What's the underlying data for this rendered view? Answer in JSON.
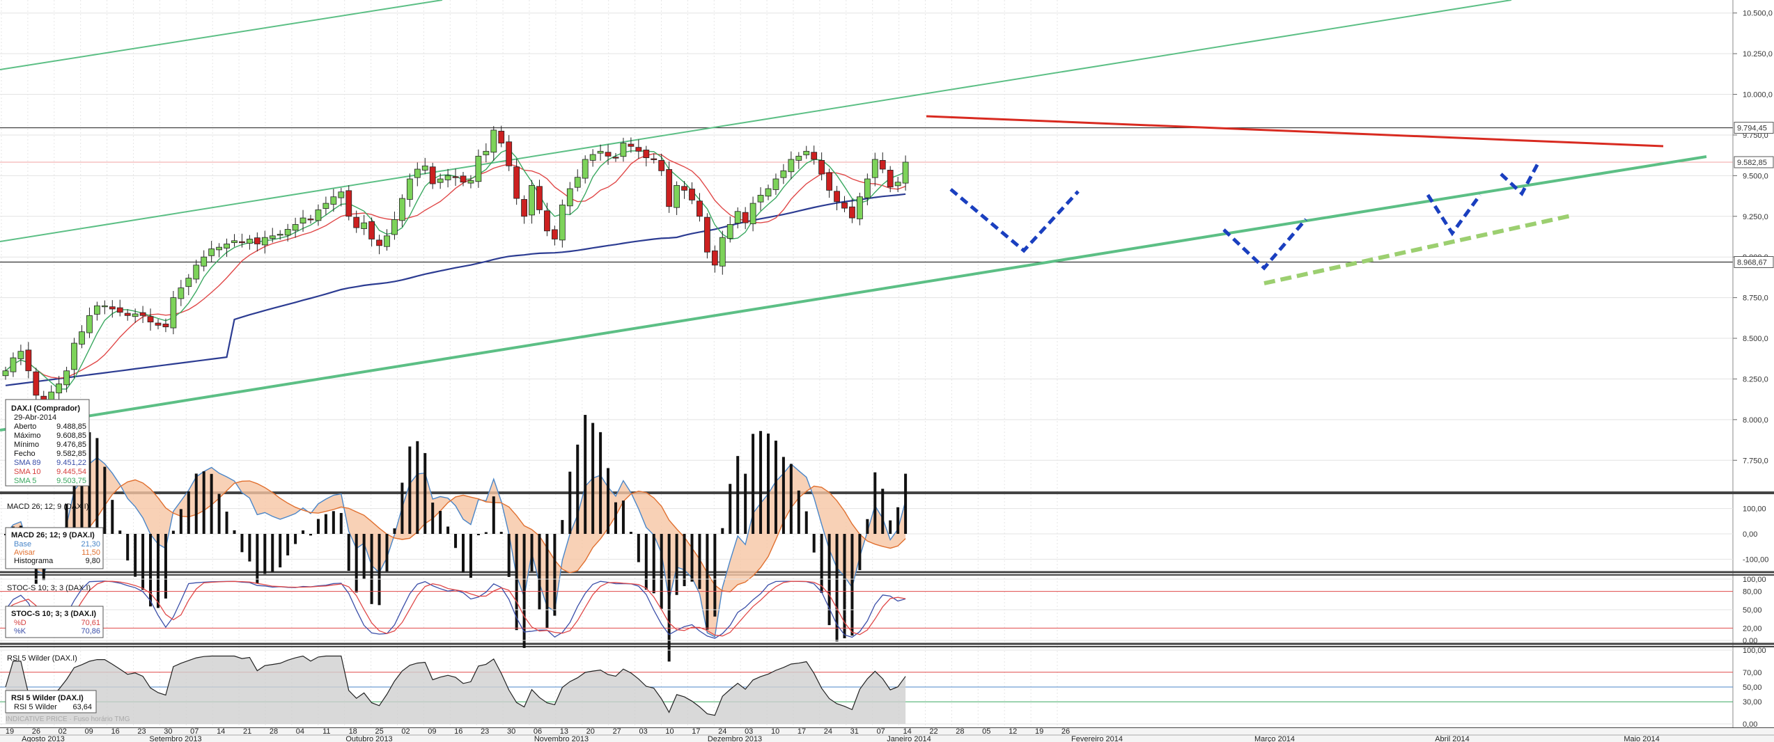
{
  "chart_data": {
    "type": "candlestick",
    "symbol": "DAX.I",
    "x_tick_labels": [
      "19",
      "26",
      "02",
      "09",
      "16",
      "23",
      "30",
      "07",
      "14",
      "21",
      "28",
      "04",
      "11",
      "18",
      "25",
      "02",
      "09",
      "16",
      "23",
      "30",
      "06",
      "13",
      "20",
      "27",
      "03",
      "10",
      "17",
      "24",
      "03",
      "10",
      "17",
      "24",
      "31",
      "07",
      "14",
      "22",
      "28",
      "05",
      "12",
      "19",
      "26"
    ],
    "month_labels": [
      "Agosto 2013",
      "Setembro 2013",
      "Outubro 2013",
      "Novembro 2013",
      "Dezembro 2013",
      "Janeiro 2014",
      "Fevereiro 2014",
      "Março 2014",
      "Abril 2014",
      "Maio 2014"
    ],
    "price_axis": {
      "ticks": [
        "7.750,0",
        "8.000,0",
        "8.250,0",
        "8.500,0",
        "8.750,0",
        "9.000,0",
        "9.250,0",
        "9.500,0",
        "9.750,0",
        "10.000,0",
        "10.250,0",
        "10.500,0"
      ],
      "ylim": [
        7550,
        10580
      ],
      "markers": [
        "9.794,45",
        "9.582,85",
        "8.968,67"
      ]
    },
    "close": [
      8300,
      8380,
      8420,
      8300,
      8150,
      8100,
      8170,
      8220,
      8300,
      8470,
      8540,
      8640,
      8700,
      8700,
      8680,
      8660,
      8640,
      8650,
      8640,
      8600,
      8580,
      8570,
      8750,
      8810,
      8870,
      8950,
      9000,
      9050,
      9060,
      9080,
      9100,
      9090,
      9110,
      9080,
      9120,
      9130,
      9140,
      9170,
      9200,
      9240,
      9230,
      9290,
      9330,
      9370,
      9400,
      9250,
      9180,
      9210,
      9110,
      9070,
      9130,
      9230,
      9360,
      9480,
      9540,
      9560,
      9450,
      9480,
      9500,
      9490,
      9460,
      9470,
      9620,
      9650,
      9780,
      9700,
      9560,
      9360,
      9250,
      9440,
      9290,
      9160,
      9110,
      9320,
      9420,
      9490,
      9600,
      9630,
      9650,
      9620,
      9610,
      9700,
      9680,
      9650,
      9610,
      9600,
      9530,
      9310,
      9440,
      9410,
      9350,
      9250,
      9030,
      8950,
      9120,
      9200,
      9280,
      9210,
      9330,
      9380,
      9420,
      9480,
      9530,
      9600,
      9620,
      9650,
      9600,
      9510,
      9410,
      9340,
      9300,
      9240,
      9370,
      9480,
      9600,
      9540,
      9430,
      9460,
      9583
    ],
    "sma5_last": [
      9503.75
    ],
    "sma10_last": [
      9445.54
    ],
    "sma89_last": [
      9451.22
    ],
    "title": "DAX.I (Comprador)",
    "info_box": {
      "date": "29-Abr-2014",
      "rows": [
        {
          "k": "Aberto",
          "v": "9.488,85",
          "color": "#111111"
        },
        {
          "k": "Máximo",
          "v": "9.608,85",
          "color": "#111111"
        },
        {
          "k": "Mínimo",
          "v": "9.476,85",
          "color": "#111111"
        },
        {
          "k": "Fecho",
          "v": "9.582,85",
          "color": "#111111"
        },
        {
          "k": "SMA 89",
          "v": "9.451,22",
          "color": "#3a4ea8"
        },
        {
          "k": "SMA 10",
          "v": "9.445,54",
          "color": "#d64040"
        },
        {
          "k": "SMA 5",
          "v": "9.503,75",
          "color": "#3aa860"
        }
      ]
    },
    "macd": {
      "header": "MACD 26; 12; 9 (DAX.I)",
      "ticks": [
        "100,00",
        "0,00",
        "-100,00"
      ],
      "box_title": "MACD 26; 12; 9 (DAX.I)",
      "rows": [
        {
          "k": "Base",
          "v": "21,30",
          "color": "#4a86c8"
        },
        {
          "k": "Avisar",
          "v": "11,50",
          "color": "#e07030"
        },
        {
          "k": "Histograma",
          "v": "9,80",
          "color": "#111111"
        }
      ],
      "base_last": 21.3,
      "signal_last": 11.5,
      "histogram_last": 9.8
    },
    "stoch": {
      "header": "STOC-S 10; 3; 3 (DAX.I)",
      "ticks": [
        "100,00",
        "80,00",
        "50,00",
        "20,00",
        "0,00"
      ],
      "box_title": "STOC-S 10; 3; 3 (DAX.I)",
      "rows": [
        {
          "k": "%D",
          "v": "70,61",
          "color": "#d64040"
        },
        {
          "k": "%K",
          "v": "70,86",
          "color": "#3a4ea8"
        }
      ],
      "d_last": 70.61,
      "k_last": 70.86
    },
    "rsi": {
      "header": "RSI 5 Wilder (DAX.I)",
      "ticks": [
        "100,00",
        "70,00",
        "50,00",
        "30,00",
        "0,00"
      ],
      "box_title": "RSI 5 Wilder (DAX.I)",
      "rows": [
        {
          "k": "RSI 5 Wilder",
          "v": "63,64",
          "color": "#111111"
        }
      ],
      "last": 63.64
    },
    "watermark": "INDICATIVE PRICE · Fuso horário TMG",
    "colors": {
      "up": "#7dd35a",
      "down": "#cc2020",
      "sma5": "#3aa860",
      "sma10": "#e04848",
      "sma89": "#2c3c92",
      "trend_green": "#5cbf85",
      "resistance_red": "#d82a20",
      "pattern_blue": "#1a3fbf"
    }
  }
}
